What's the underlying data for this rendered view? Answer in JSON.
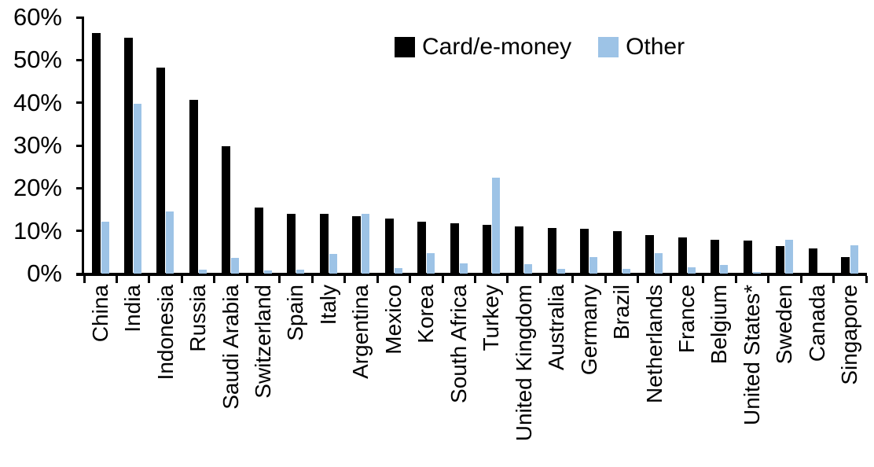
{
  "chart_data": {
    "type": "bar",
    "title": "",
    "xlabel": "",
    "ylabel": "",
    "ylim": [
      0,
      60
    ],
    "yticks": [
      "0%",
      "10%",
      "20%",
      "30%",
      "40%",
      "50%",
      "60%"
    ],
    "grid": false,
    "legend_position": "top-center",
    "categories": [
      "China",
      "India",
      "Indonesia",
      "Russia",
      "Saudi Arabia",
      "Switzerland",
      "Spain",
      "Italy",
      "Argentina",
      "Mexico",
      "Korea",
      "South Africa",
      "Turkey",
      "United Kingdom",
      "Australia",
      "Germany",
      "Brazil",
      "Netherlands",
      "France",
      "Belgium",
      "United States*",
      "Sweden",
      "Canada",
      "Singapore"
    ],
    "series": [
      {
        "name": "Card/e-money",
        "color": "#000000",
        "values": [
          56.4,
          55.2,
          48.2,
          40.6,
          29.8,
          15.5,
          14.0,
          14.0,
          13.4,
          12.8,
          12.2,
          11.7,
          11.5,
          11.0,
          10.7,
          10.5,
          9.9,
          9.1,
          8.5,
          8.0,
          7.7,
          6.4,
          5.8,
          3.9
        ]
      },
      {
        "name": "Other",
        "color": "#9DC3E6",
        "values": [
          12.2,
          39.7,
          14.6,
          0.9,
          3.7,
          0.7,
          0.9,
          4.6,
          13.9,
          1.3,
          4.7,
          2.4,
          22.5,
          2.3,
          1.1,
          3.9,
          1.1,
          4.8,
          1.5,
          2.0,
          0.3,
          8.0,
          0,
          6.6
        ]
      }
    ],
    "axis_color": "#000000"
  }
}
